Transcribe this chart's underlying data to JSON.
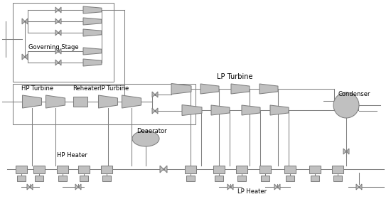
{
  "bg_color": "#ffffff",
  "line_color": "#7f7f7f",
  "fill_color": "#c0c0c0",
  "text_color": "#000000",
  "labels": {
    "governing_stage": "Governing Stage",
    "hp_turbine": "HP Turbine",
    "reheater": "Reheater",
    "ip_turbine": "IP Turbine",
    "lp_turbine": "LP Turbine",
    "condenser": "Condenser",
    "deaerator": "Deaerator",
    "hp_heater": "HP Heater",
    "lp_heater": "LP Heater"
  },
  "font_size": 6.0,
  "lw": 0.75
}
